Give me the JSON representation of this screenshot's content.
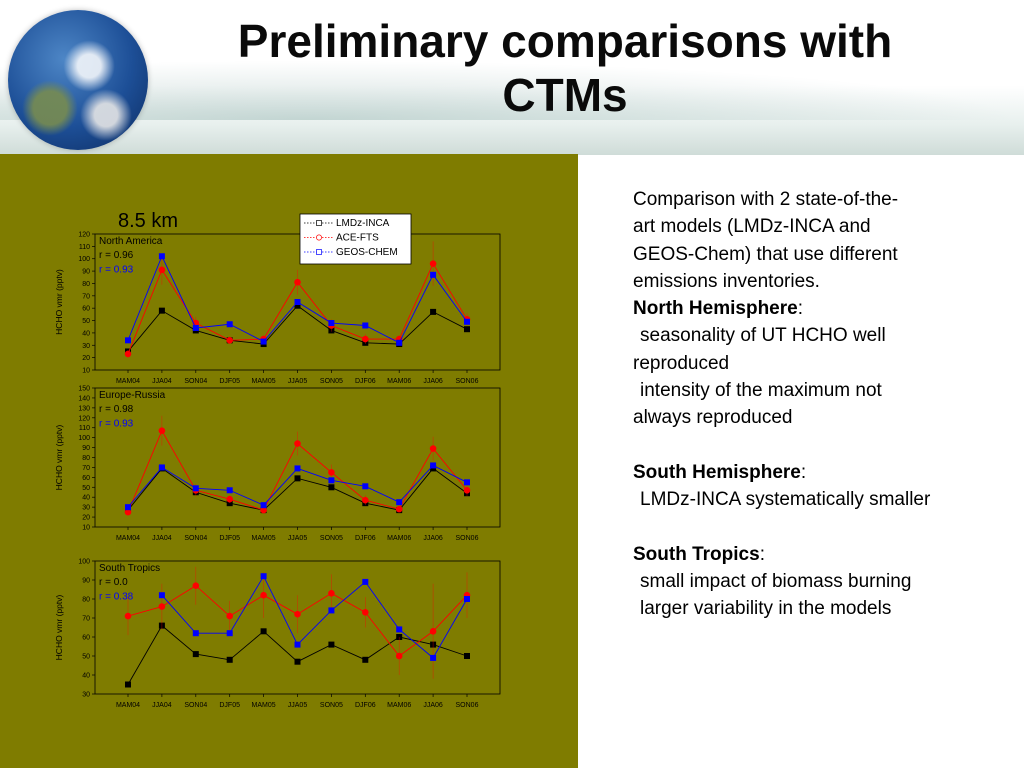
{
  "slide": {
    "title": "Preliminary comparisons with\nCTMs"
  },
  "colors": {
    "panel_bg": "#7f7c00",
    "lmdz": "#000000",
    "ace": "#ff0000",
    "geos": "#0000ff"
  },
  "text_panel": {
    "intro_1": "Comparison with 2 state-of-the-",
    "intro_2": "art models (LMDz-INCA and",
    "intro_3": "GEOS-Chem) that use different",
    "intro_4": "emissions inventories.",
    "nh_heading": "North Hemisphere",
    "colon": ":",
    "nh_1a": "seasonality of UT HCHO well",
    "nh_1b": "reproduced",
    "nh_2a": "intensity of the maximum not",
    "nh_2b": "always reproduced",
    "sh_heading": "South Hemisphere",
    "sh_1": "LMDz-INCA systematically smaller",
    "st_heading": "South Tropics",
    "st_1": "small impact of biomass burning",
    "st_2": "larger variability in the models"
  },
  "chart_data": [
    {
      "type": "line",
      "altitude_label": "8.5 km",
      "title": "North America",
      "ylabel": "HCHO vmr (pptv)",
      "categories": [
        "MAM04",
        "JJA04",
        "SON04",
        "DJF05",
        "MAM05",
        "JJA05",
        "SON05",
        "DJF06",
        "MAM06",
        "JJA06",
        "SON06"
      ],
      "ylim": [
        10,
        120
      ],
      "yticks": [
        10,
        20,
        30,
        40,
        50,
        60,
        70,
        80,
        90,
        100,
        110,
        120
      ],
      "stats": [
        {
          "text": "r = 0.96",
          "color": "#000000"
        },
        {
          "text": "r = 0.93",
          "color": "#0000ff"
        }
      ],
      "legend": [
        "LMDz-INCA",
        "ACE-FTS",
        "GEOS-CHEM"
      ],
      "series": [
        {
          "name": "LMDz-INCA",
          "color": "#000000",
          "values": [
            25,
            58,
            42,
            34,
            31,
            62,
            42,
            32,
            31,
            57,
            43
          ]
        },
        {
          "name": "ACE-FTS",
          "color": "#ff0000",
          "values": [
            23,
            91,
            48,
            34,
            35,
            81,
            46,
            35,
            35,
            96,
            51
          ],
          "errors": [
            3,
            12,
            5,
            3,
            3,
            10,
            5,
            4,
            3,
            18,
            5
          ]
        },
        {
          "name": "GEOS-CHEM",
          "color": "#0000ff",
          "values": [
            34,
            102,
            44,
            47,
            33,
            65,
            48,
            46,
            32,
            87,
            49
          ]
        }
      ]
    },
    {
      "type": "line",
      "title": "Europe-Russia",
      "ylabel": "HCHO vmr (pptv)",
      "categories": [
        "MAM04",
        "JJA04",
        "SON04",
        "DJF05",
        "MAM05",
        "JJA05",
        "SON05",
        "DJF06",
        "MAM06",
        "JJA06",
        "SON06"
      ],
      "ylim": [
        10,
        150
      ],
      "yticks": [
        10,
        20,
        30,
        40,
        50,
        60,
        70,
        80,
        90,
        100,
        110,
        120,
        130,
        140,
        150
      ],
      "stats": [
        {
          "text": "r = 0.98",
          "color": "#000000"
        },
        {
          "text": "r = 0.93",
          "color": "#0000ff"
        }
      ],
      "series": [
        {
          "name": "LMDz-INCA",
          "color": "#000000",
          "values": [
            27,
            69,
            45,
            34,
            27,
            59,
            50,
            34,
            27,
            69,
            44
          ]
        },
        {
          "name": "ACE-FTS",
          "color": "#ff0000",
          "values": [
            25,
            107,
            47,
            38,
            27,
            94,
            65,
            37,
            28,
            89,
            47
          ],
          "errors": [
            3,
            15,
            6,
            4,
            3,
            12,
            8,
            5,
            3,
            12,
            6
          ]
        },
        {
          "name": "GEOS-CHEM",
          "color": "#0000ff",
          "values": [
            30,
            70,
            49,
            47,
            32,
            69,
            57,
            51,
            35,
            72,
            55
          ]
        }
      ]
    },
    {
      "type": "line",
      "title": "South Tropics",
      "ylabel": "HCHO vmr (pptv)",
      "categories": [
        "MAM04",
        "JJA04",
        "SON04",
        "DJF05",
        "MAM05",
        "JJA05",
        "SON05",
        "DJF06",
        "MAM06",
        "JJA06",
        "SON06"
      ],
      "ylim": [
        30,
        100
      ],
      "yticks": [
        30,
        40,
        50,
        60,
        70,
        80,
        90,
        100
      ],
      "stats": [
        {
          "text": "r = 0.0",
          "color": "#000000"
        },
        {
          "text": "r = 0.38",
          "color": "#0000ff"
        }
      ],
      "series": [
        {
          "name": "LMDz-INCA",
          "color": "#000000",
          "values": [
            35,
            66,
            51,
            48,
            63,
            47,
            56,
            48,
            60,
            56,
            50
          ]
        },
        {
          "name": "ACE-FTS",
          "color": "#ff0000",
          "values": [
            71,
            76,
            87,
            71,
            82,
            72,
            83,
            73,
            50,
            63,
            82
          ],
          "errors": [
            10,
            12,
            10,
            8,
            12,
            10,
            10,
            8,
            10,
            25,
            12
          ]
        },
        {
          "name": "GEOS-CHEM",
          "color": "#0000ff",
          "values": [
            null,
            82,
            62,
            62,
            92,
            56,
            74,
            89,
            64,
            49,
            80
          ]
        }
      ]
    }
  ]
}
